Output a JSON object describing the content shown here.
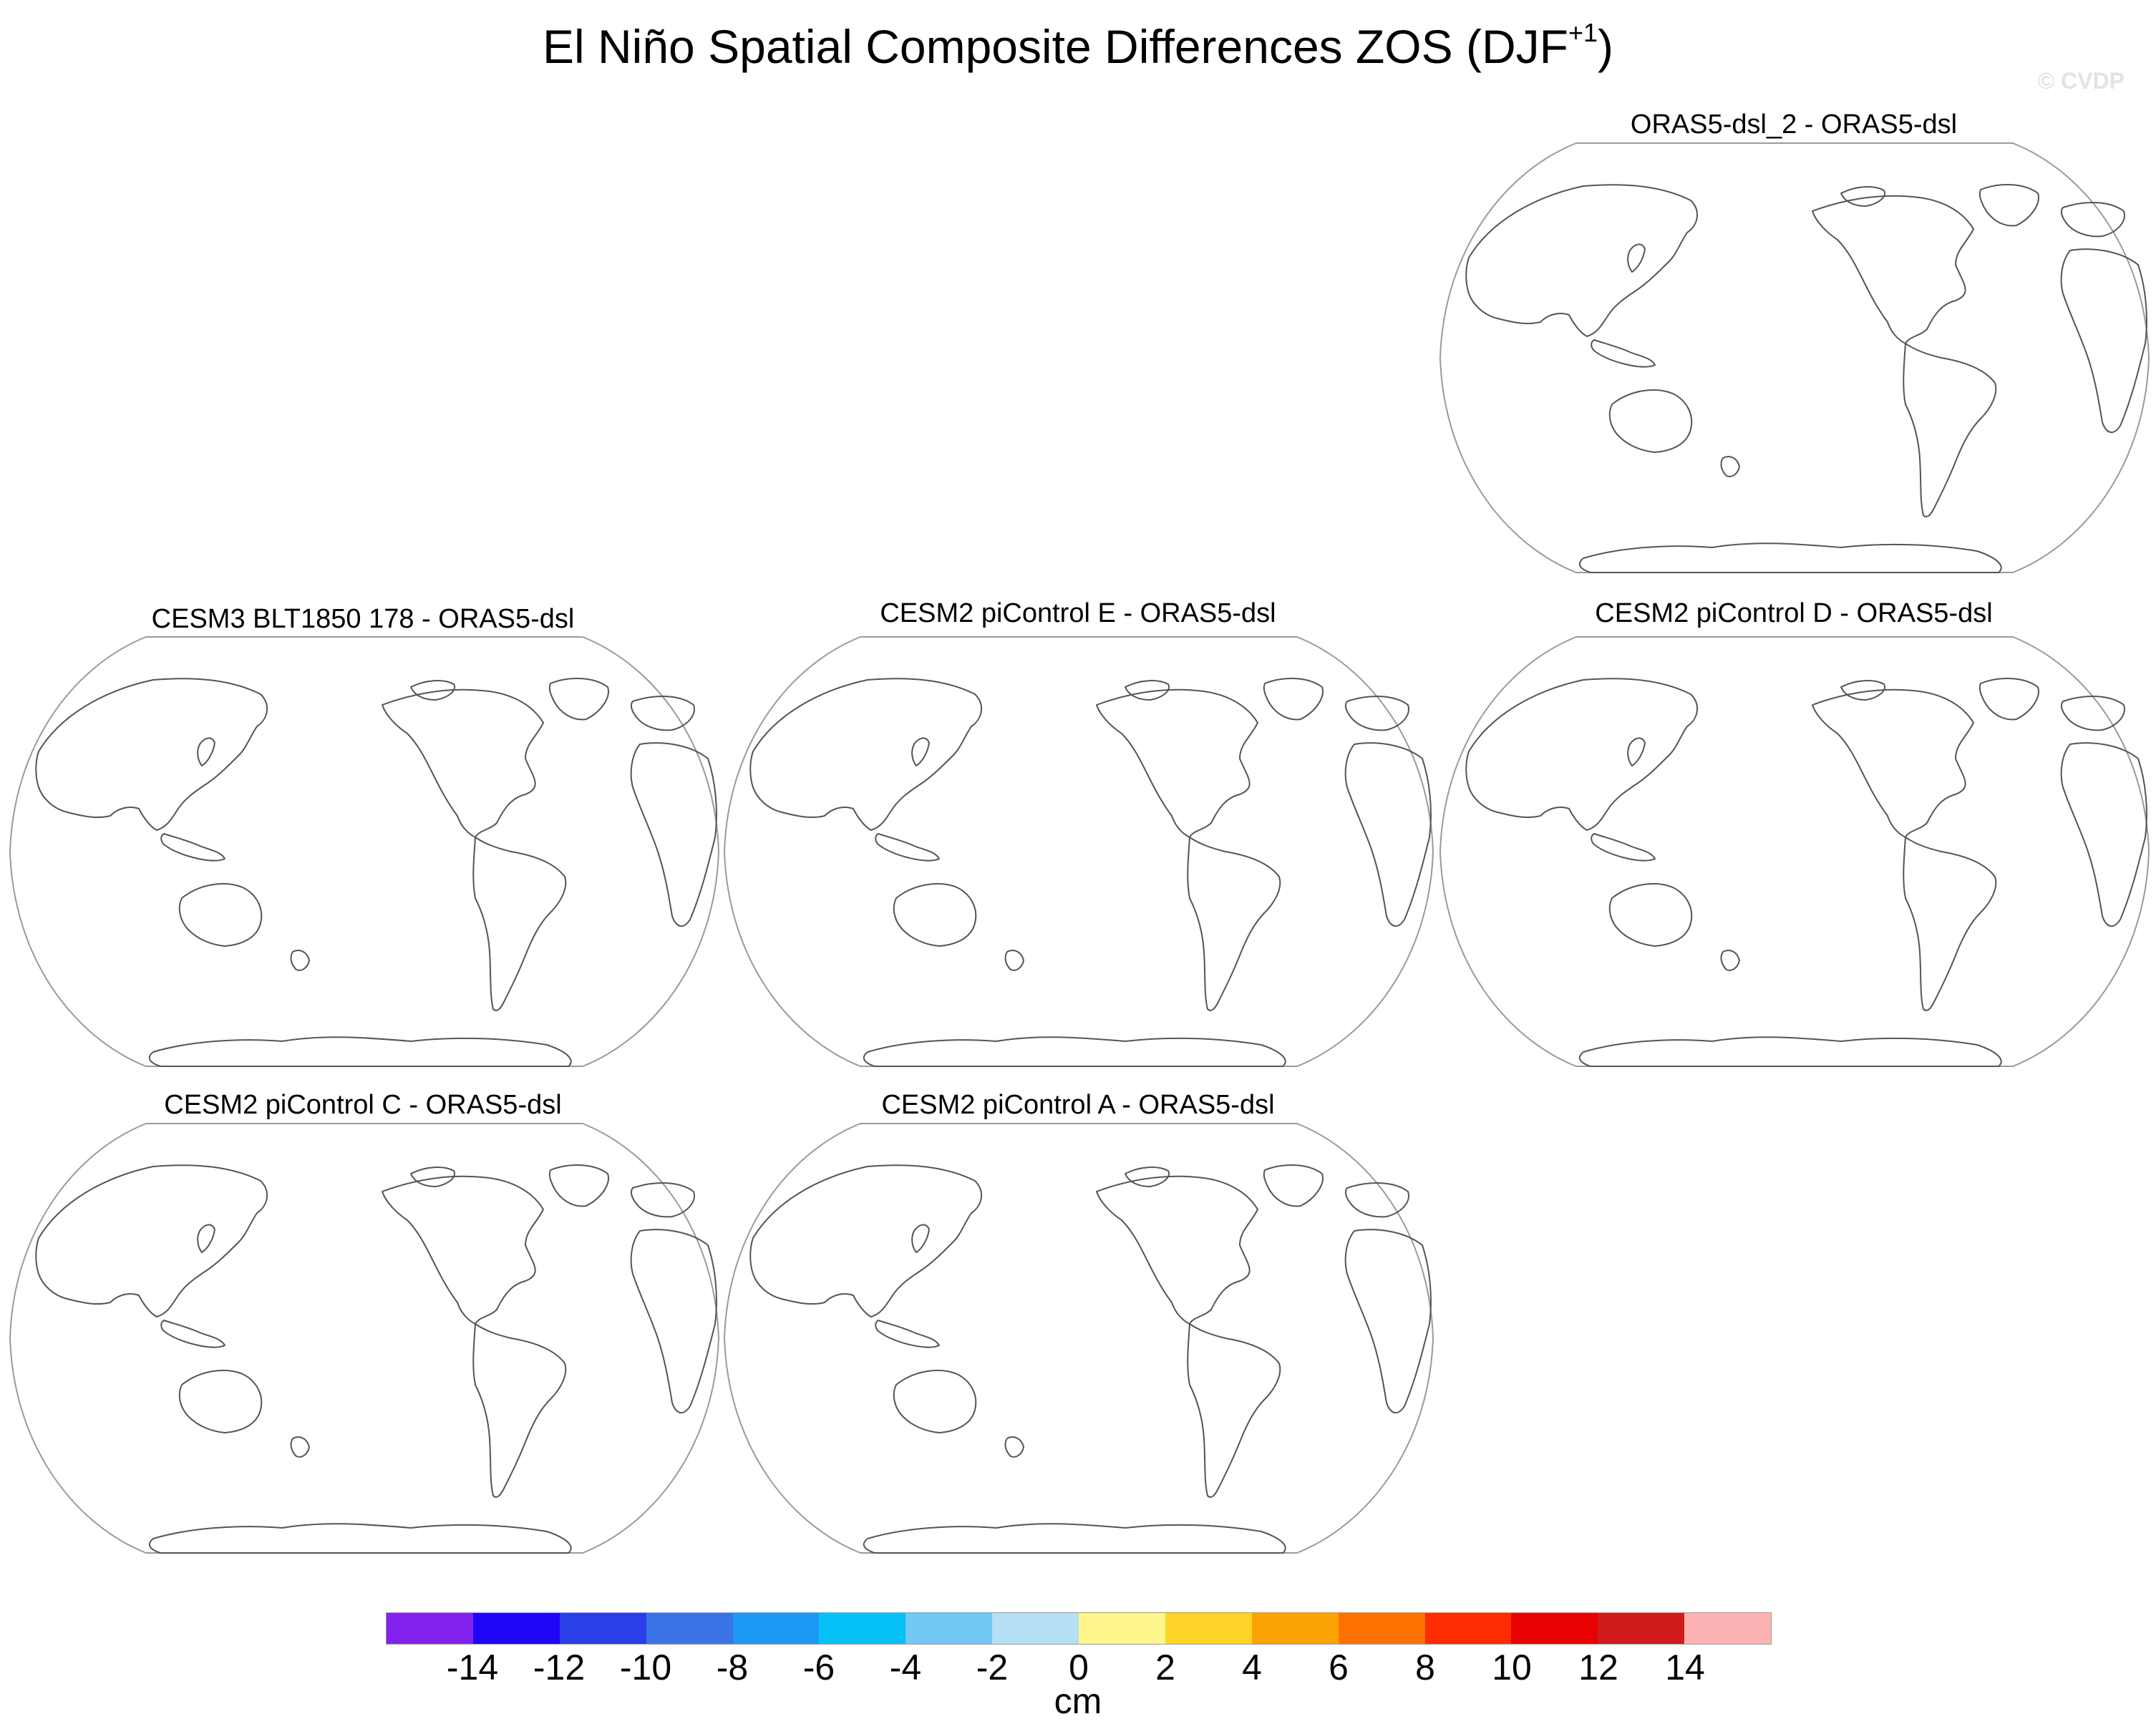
{
  "title": {
    "text": "El Niño Spatial Composite Differences ZOS (DJF",
    "superscript": "+1",
    "close": ")"
  },
  "watermark": "© CVDP",
  "panels": [
    {
      "label": "ORAS5-dsl_2 - ORAS5-dsl"
    },
    {
      "label": "CESM3 BLT1850 178 - ORAS5-dsl"
    },
    {
      "label": "CESM2 piControl E - ORAS5-dsl"
    },
    {
      "label": "CESM2 piControl D - ORAS5-dsl"
    },
    {
      "label": "CESM2 piControl C - ORAS5-dsl"
    },
    {
      "label": "CESM2 piControl A - ORAS5-dsl"
    }
  ],
  "colorbar": {
    "units": "cm",
    "ticks": [
      "-14",
      "-12",
      "-10",
      "-8",
      "-6",
      "-4",
      "-2",
      "0",
      "2",
      "4",
      "6",
      "8",
      "10",
      "12",
      "14"
    ],
    "colors": [
      "#8221ee",
      "#1f05f6",
      "#2a3fe8",
      "#3a72e8",
      "#1d97f5",
      "#06c1f8",
      "#72c9f3",
      "#b4dff4",
      "#fef68a",
      "#fdd427",
      "#fba203",
      "#fd7301",
      "#fd2c01",
      "#e80101",
      "#cf1c1b",
      "#fdb3b3"
    ]
  }
}
